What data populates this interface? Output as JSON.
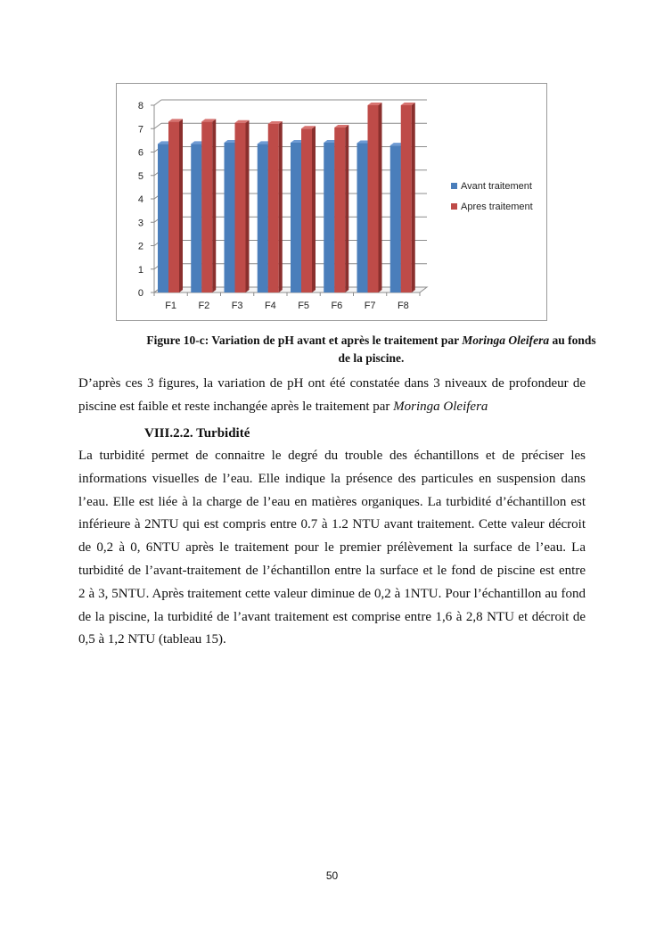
{
  "chart_data": {
    "type": "bar",
    "categories": [
      "F1",
      "F2",
      "F3",
      "F4",
      "F5",
      "F6",
      "F7",
      "F8"
    ],
    "series": [
      {
        "name": "Avant traitement",
        "color": "#4a7ebb",
        "values": [
          6.35,
          6.35,
          6.4,
          6.35,
          6.4,
          6.4,
          6.38,
          6.28
        ]
      },
      {
        "name": "Apres traitement",
        "color": "#be4b48",
        "values": [
          7.3,
          7.3,
          7.25,
          7.2,
          7.0,
          7.05,
          8.0,
          8.0
        ]
      }
    ],
    "ylim": [
      0,
      8
    ],
    "yticks": [
      "0",
      "1",
      "2",
      "3",
      "4",
      "5",
      "6",
      "7",
      "8"
    ],
    "grid": true,
    "legend": "right",
    "style": "3d-column"
  },
  "caption": {
    "line1_a": "Figure 10-c: Variation de pH avant et après le traitement par ",
    "line1_italic": "Moringa Oleifera",
    "line1_b": " au fonds",
    "line2": "de la piscine."
  },
  "para1": {
    "line1": "D’après ces 3 figures, la variation de pH ont été constatée dans 3 niveaux de profondeur de",
    "line2_a": "piscine est faible et reste inchangée après le traitement par ",
    "line2_italic": "Moringa Oleifera"
  },
  "section_heading": "VIII.2.2. Turbidité",
  "para2": [
    "La turbidité permet de connaitre le degré du trouble des échantillons et de préciser les",
    "informations visuelles de l’eau. Elle indique la présence des particules en suspension dans",
    "l’eau. Elle est liée à la charge de l’eau en matières organiques. La turbidité d’échantillon est",
    "inférieure à 2NTU qui est compris entre 0.7 à 1.2 NTU avant traitement. Cette valeur décroit",
    "de 0,2 à 0, 6NTU après le traitement pour le premier  prélèvement  la  surface  de  l’eau.  La",
    "turbidité de l’avant-traitement de l’échantillon entre la surface et le fond de piscine est entre",
    "2 à 3, 5NTU. Après traitement cette valeur diminue de 0,2 à 1NTU. Pour l’échantillon au fond",
    "de la piscine, la turbidité de l’avant traitement est comprise entre 1,6 à 2,8 NTU et décroit de",
    "0,5 à 1,2 NTU (tableau 15)."
  ],
  "page_number": "50"
}
